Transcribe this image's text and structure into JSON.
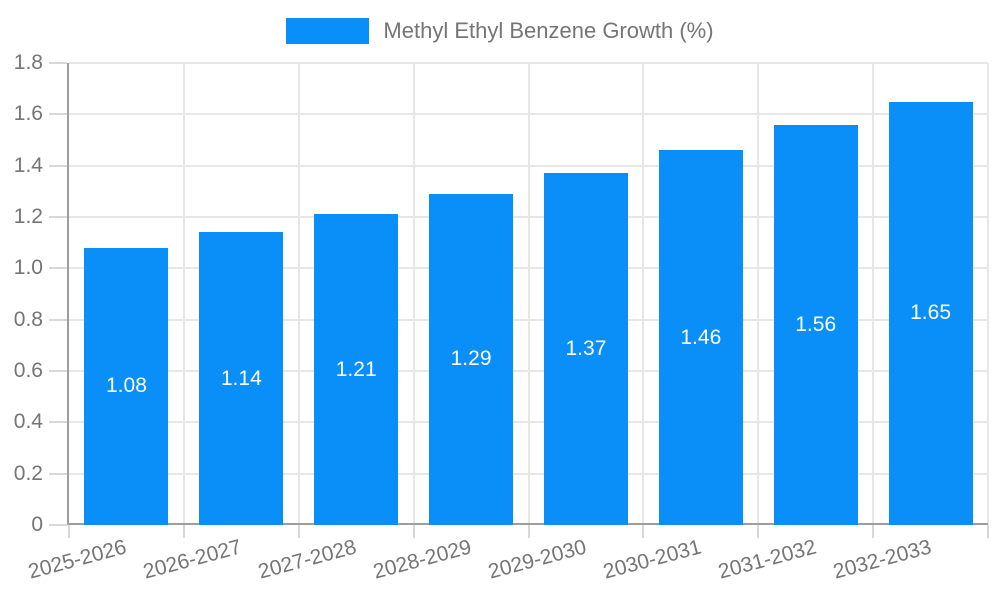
{
  "chart_data": {
    "type": "bar",
    "title": "",
    "legend": "Methyl Ethyl Benzene Growth (%)",
    "legend_position": "top-center",
    "categories": [
      "2025-2026",
      "2026-2027",
      "2027-2028",
      "2028-2029",
      "2029-2030",
      "2030-2031",
      "2031-2032",
      "2032-2033"
    ],
    "values": [
      1.08,
      1.14,
      1.21,
      1.29,
      1.37,
      1.46,
      1.56,
      1.65
    ],
    "value_labels": [
      "1.08",
      "1.14",
      "1.21",
      "1.29",
      "1.37",
      "1.46",
      "1.56",
      "1.65"
    ],
    "xlabel": "",
    "ylabel": "",
    "ylim": [
      0,
      1.8
    ],
    "ytick_step": 0.2,
    "yticks": [
      "0",
      "0.2",
      "0.4",
      "0.6",
      "0.8",
      "1.0",
      "1.2",
      "1.4",
      "1.6",
      "1.8"
    ],
    "grid": true,
    "xlabel_rotation_deg": -15,
    "colors": {
      "bar": "#0a8ff8",
      "grid": "#e7e7e7",
      "axis": "#9e9e9e",
      "tick": "#d8d8d8",
      "axis_text": "#757575",
      "value_text": "#ffffff",
      "background": "#ffffff"
    }
  }
}
